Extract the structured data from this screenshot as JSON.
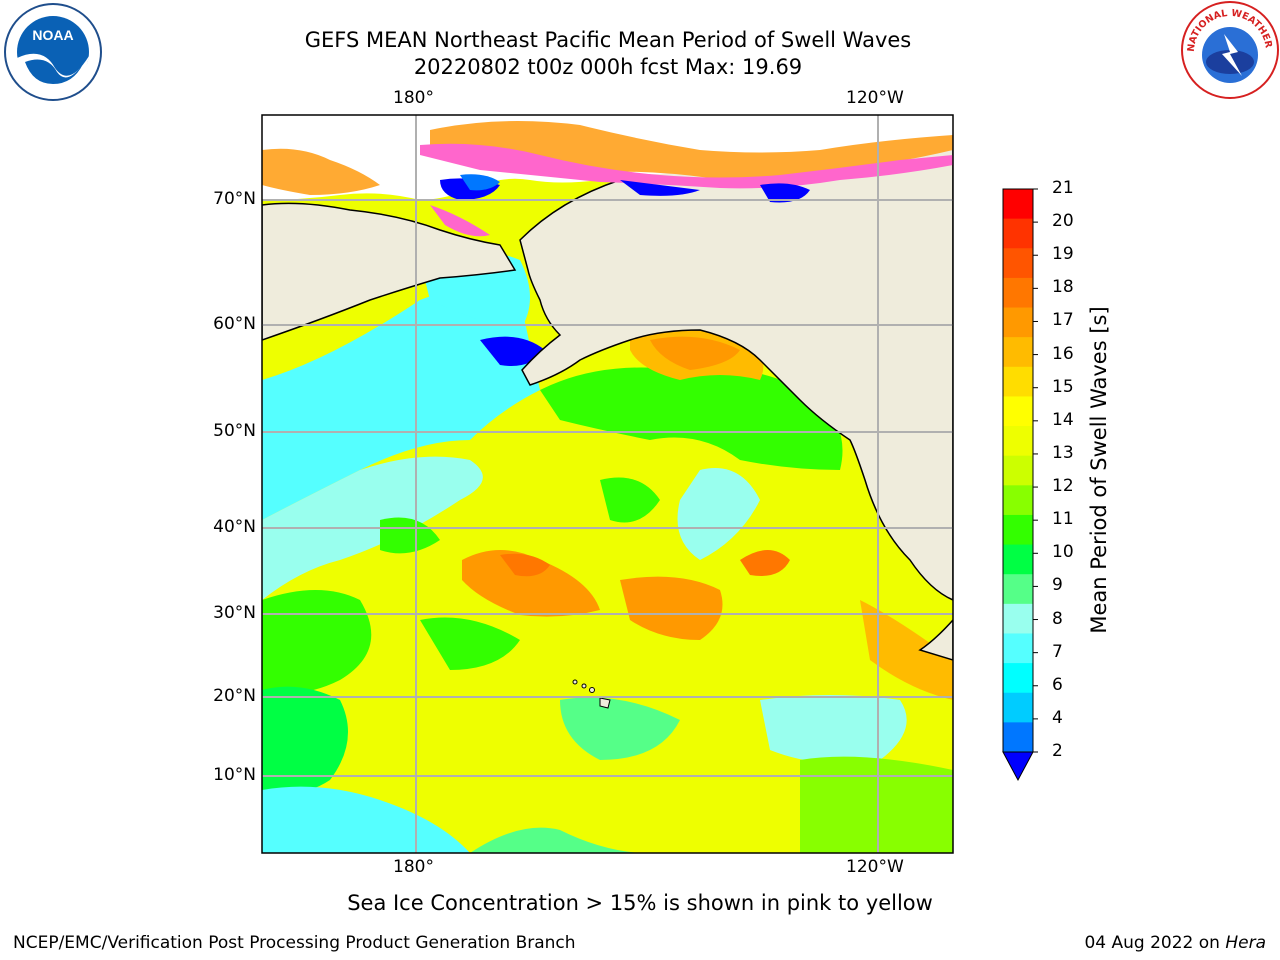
{
  "header": {
    "title_line1": "GEFS MEAN Northeast Pacific Mean Period of Swell Waves",
    "title_line2": "20220802 t00z 000h fcst   Max: 19.69"
  },
  "map": {
    "lon_ticks": [
      "180°",
      "120°W"
    ],
    "lat_ticks": [
      "70°N",
      "60°N",
      "50°N",
      "40°N",
      "30°N",
      "20°N",
      "10°N"
    ]
  },
  "colorbar": {
    "label": "Mean Period of Swell Waves [s]",
    "levels": [
      "21",
      "20",
      "19",
      "18",
      "17",
      "16",
      "15",
      "14",
      "13",
      "12",
      "11",
      "10",
      "9",
      "8",
      "7",
      "6",
      "4",
      "2"
    ],
    "colors": [
      "#ff0000",
      "#ff3300",
      "#ff5500",
      "#ff7700",
      "#ff9900",
      "#ffbb00",
      "#ffdd00",
      "#ffff00",
      "#eeff00",
      "#ccff00",
      "#88ff00",
      "#33ff00",
      "#00ff44",
      "#55ff88",
      "#99ffee",
      "#55ffff",
      "#00ffff",
      "#00ccff",
      "#0077ff",
      "#0000ff"
    ]
  },
  "colors": {
    "land": "#efecdc",
    "ice_pink": "#ff66cc",
    "ice_orange": "#ffaa33",
    "grid": "#b0b0b0"
  },
  "footer": {
    "note": "Sea Ice Concentration > 15% is shown in pink to yellow",
    "credit": "NCEP/EMC/Verification Post Processing Product Generation Branch",
    "date": "04 Aug 2022 on",
    "host": "Hera"
  },
  "logos": {
    "noaa_text": "NOAA",
    "nws_text": "NATIONAL WEATHER SERVICE"
  }
}
